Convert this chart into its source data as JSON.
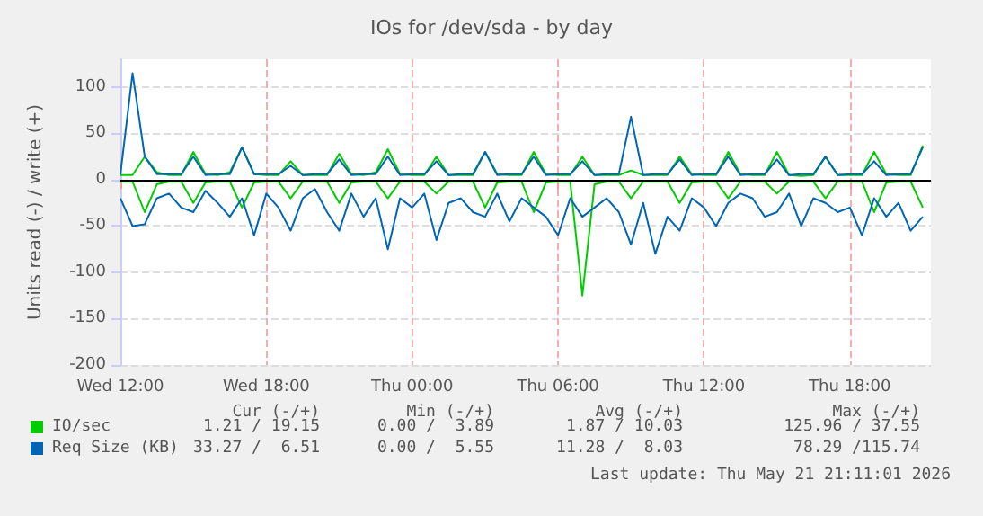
{
  "chart_data": {
    "type": "line",
    "title": "IOs for /dev/sda - by day",
    "ylabel": "Units read (-) / write (+)",
    "x": [
      "2026-05-20T12:00",
      "2026-05-20T12:30",
      "2026-05-20T13:00",
      "2026-05-20T13:30",
      "2026-05-20T14:00",
      "2026-05-20T14:30",
      "2026-05-20T15:00",
      "2026-05-20T15:30",
      "2026-05-20T16:00",
      "2026-05-20T16:30",
      "2026-05-20T17:00",
      "2026-05-20T17:30",
      "2026-05-20T18:00",
      "2026-05-20T18:30",
      "2026-05-20T19:00",
      "2026-05-20T19:30",
      "2026-05-20T20:00",
      "2026-05-20T20:30",
      "2026-05-20T21:00",
      "2026-05-20T21:30",
      "2026-05-20T22:00",
      "2026-05-20T22:30",
      "2026-05-20T23:00",
      "2026-05-20T23:30",
      "2026-05-21T00:00",
      "2026-05-21T00:30",
      "2026-05-21T01:00",
      "2026-05-21T01:30",
      "2026-05-21T02:00",
      "2026-05-21T02:30",
      "2026-05-21T03:00",
      "2026-05-21T03:30",
      "2026-05-21T04:00",
      "2026-05-21T04:30",
      "2026-05-21T05:00",
      "2026-05-21T05:30",
      "2026-05-21T06:00",
      "2026-05-21T06:30",
      "2026-05-21T07:00",
      "2026-05-21T07:30",
      "2026-05-21T08:00",
      "2026-05-21T08:30",
      "2026-05-21T09:00",
      "2026-05-21T09:30",
      "2026-05-21T10:00",
      "2026-05-21T10:30",
      "2026-05-21T11:00",
      "2026-05-21T11:30",
      "2026-05-21T12:00",
      "2026-05-21T12:30",
      "2026-05-21T13:00",
      "2026-05-21T13:30",
      "2026-05-21T14:00",
      "2026-05-21T14:30",
      "2026-05-21T15:00",
      "2026-05-21T15:30",
      "2026-05-21T16:00",
      "2026-05-21T16:30",
      "2026-05-21T17:00",
      "2026-05-21T17:30",
      "2026-05-21T18:00",
      "2026-05-21T18:30",
      "2026-05-21T19:00",
      "2026-05-21T19:30",
      "2026-05-21T20:00",
      "2026-05-21T20:30",
      "2026-05-21T21:00"
    ],
    "xlim": [
      "2026-05-20T12:00",
      "2026-05-21T21:20"
    ],
    "xticks": [
      {
        "value": "2026-05-20T12:00",
        "label": "Wed 12:00"
      },
      {
        "value": "2026-05-20T18:00",
        "label": "Wed 18:00"
      },
      {
        "value": "2026-05-21T00:00",
        "label": "Thu 00:00"
      },
      {
        "value": "2026-05-21T06:00",
        "label": "Thu 06:00"
      },
      {
        "value": "2026-05-21T12:00",
        "label": "Thu 12:00"
      },
      {
        "value": "2026-05-21T18:00",
        "label": "Thu 18:00"
      }
    ],
    "ylim": [
      -200,
      130
    ],
    "yticks": [
      -200,
      -150,
      -100,
      -50,
      0,
      50,
      100
    ],
    "grid": true,
    "legend": "bottom left",
    "marker": "none",
    "line_style": "solid",
    "ref_lines": [
      {
        "axis": "y",
        "value": 0,
        "color": "#000000"
      }
    ],
    "series": [
      {
        "name": "IO/sec",
        "color": "#00cc00",
        "values": [
          5,
          5,
          25,
          8,
          5,
          5,
          30,
          6,
          5,
          8,
          35,
          6,
          5,
          5,
          20,
          5,
          5,
          5,
          28,
          6,
          5,
          8,
          33,
          6,
          5,
          5,
          25,
          5,
          5,
          5,
          30,
          6,
          5,
          5,
          30,
          6,
          5,
          5,
          25,
          5,
          5,
          5,
          10,
          5,
          5,
          5,
          25,
          6,
          5,
          5,
          30,
          6,
          5,
          5,
          30,
          5,
          4,
          5,
          25,
          5,
          5,
          5,
          30,
          6,
          5,
          5,
          37
        ]
      },
      {
        "name": "Req Size (KB)",
        "color": "#0066b3",
        "values": [
          6,
          115,
          25,
          6,
          6,
          6,
          25,
          5,
          6,
          6,
          35,
          6,
          6,
          6,
          15,
          5,
          6,
          6,
          22,
          5,
          6,
          6,
          25,
          5,
          6,
          6,
          20,
          5,
          6,
          6,
          30,
          5,
          6,
          6,
          25,
          5,
          6,
          6,
          20,
          5,
          6,
          6,
          68,
          5,
          6,
          6,
          22,
          5,
          6,
          6,
          25,
          5,
          6,
          6,
          22,
          5,
          6,
          6,
          25,
          5,
          6,
          6,
          20,
          5,
          6,
          6,
          35
        ]
      },
      {
        "color": "#00cc00",
        "values": [
          -2,
          -2,
          -35,
          -5,
          -2,
          -2,
          -25,
          -3,
          -2,
          -2,
          -30,
          -3,
          -2,
          -2,
          -20,
          -2,
          -2,
          -2,
          -25,
          -3,
          -2,
          -2,
          -20,
          -2,
          -2,
          -2,
          -15,
          -2,
          -2,
          -2,
          -30,
          -3,
          -2,
          -2,
          -35,
          -3,
          -2,
          -2,
          -125,
          -5,
          -2,
          -2,
          -20,
          -2,
          -2,
          -2,
          -25,
          -3,
          -2,
          -2,
          -20,
          -2,
          -2,
          -2,
          -15,
          -2,
          -2,
          -2,
          -20,
          -2,
          -2,
          -2,
          -35,
          -3,
          -2,
          -2,
          -30
        ]
      },
      {
        "color": "#0066b3",
        "values": [
          -20,
          -50,
          -48,
          -20,
          -15,
          -30,
          -35,
          -12,
          -25,
          -40,
          -20,
          -60,
          -15,
          -30,
          -55,
          -20,
          -10,
          -35,
          -55,
          -15,
          -40,
          -20,
          -75,
          -20,
          -30,
          -15,
          -65,
          -25,
          -20,
          -35,
          -40,
          -15,
          -45,
          -20,
          -30,
          -40,
          -60,
          -20,
          -40,
          -30,
          -20,
          -35,
          -70,
          -25,
          -80,
          -40,
          -55,
          -20,
          -30,
          -50,
          -25,
          -15,
          -20,
          -40,
          -35,
          -15,
          -50,
          -20,
          -25,
          -35,
          -30,
          -60,
          -20,
          -40,
          -25,
          -55,
          -40
        ]
      }
    ],
    "annotations": [
      "Cur (-/+)",
      "Min (-/+)",
      "Avg (-/+)",
      "Max (-/+)",
      "1.21 / 19.15",
      "0.00 /  3.89",
      "1.87 / 10.03",
      "125.96 / 37.55",
      "33.27 /  6.51",
      "0.00 /  5.55",
      "11.28 /  8.03",
      "78.29 /115.74",
      "Last update: Thu May 21 21:11:01 2026"
    ]
  }
}
